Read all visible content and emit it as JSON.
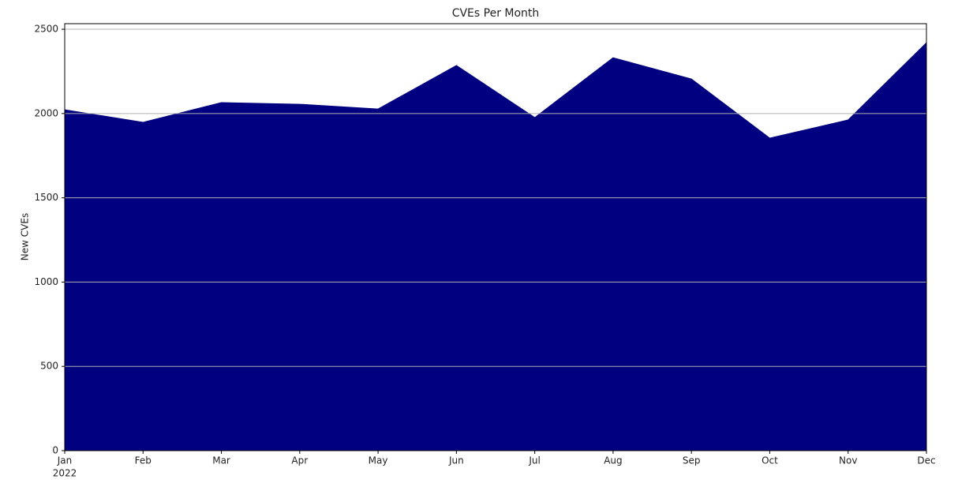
{
  "chart_data": {
    "type": "area",
    "title": "CVEs Per Month",
    "y_label": "New CVEs",
    "categories": [
      "Jan",
      "Feb",
      "Mar",
      "Apr",
      "May",
      "Jun",
      "Jul",
      "Aug",
      "Sep",
      "Oct",
      "Nov",
      "Dec"
    ],
    "year_label": "2022",
    "values": [
      2022,
      1948,
      2065,
      2055,
      2027,
      2285,
      1976,
      2331,
      2205,
      1854,
      1962,
      2420
    ],
    "color": "#000080",
    "ylim": [
      0,
      2533
    ],
    "yticks": [
      0,
      500,
      1000,
      1500,
      2000,
      2500
    ],
    "grid": true
  }
}
